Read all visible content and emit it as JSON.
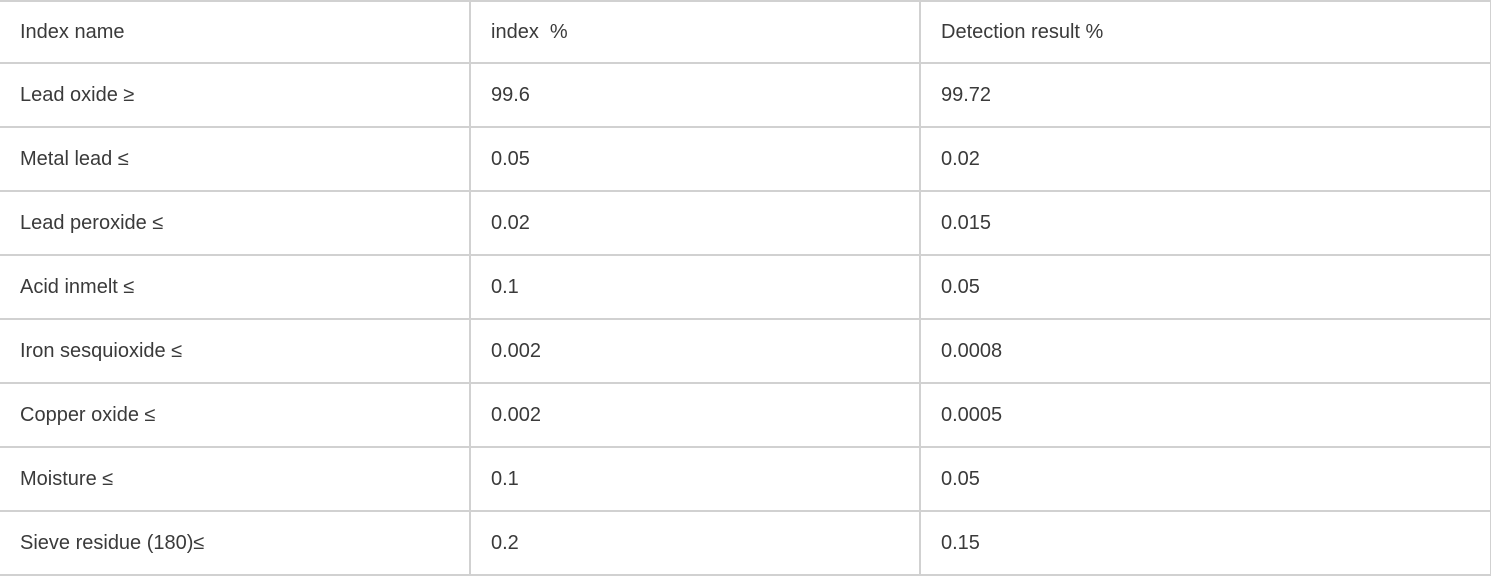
{
  "table": {
    "columns": [
      {
        "label": "Index name"
      },
      {
        "label": "index  %"
      },
      {
        "label": "Detection result %"
      }
    ],
    "rows": [
      {
        "name": "Lead oxide ≥",
        "index": "99.6",
        "result": "99.72"
      },
      {
        "name": "Metal lead ≤",
        "index": "0.05",
        "result": "0.02"
      },
      {
        "name": "Lead peroxide ≤",
        "index": "0.02",
        "result": "0.015"
      },
      {
        "name": "Acid inmelt ≤",
        "index": "0.1",
        "result": "0.05"
      },
      {
        "name": "Iron sesquioxide ≤",
        "index": "0.002",
        "result": "0.0008"
      },
      {
        "name": "Copper oxide ≤",
        "index": "0.002",
        "result": "0.0005"
      },
      {
        "name": "Moisture ≤",
        "index": "0.1",
        "result": "0.05"
      },
      {
        "name": "Sieve residue (180)≤",
        "index": "0.2",
        "result": "0.15"
      }
    ],
    "colors": {
      "border": "#d1d1d1",
      "text": "#3a3a3a",
      "background": "#ffffff"
    }
  }
}
